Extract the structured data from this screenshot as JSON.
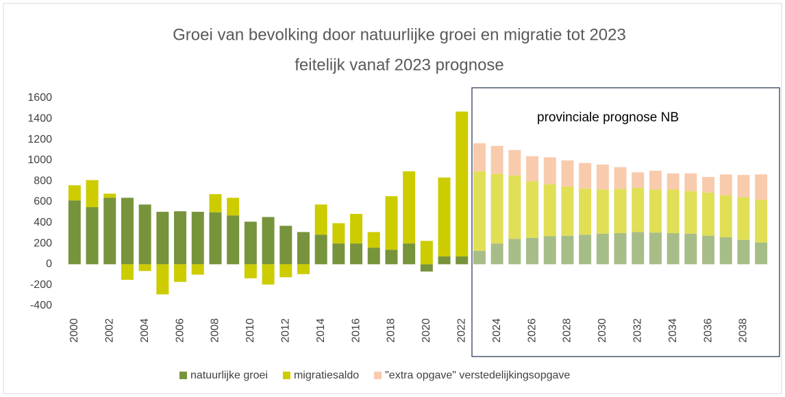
{
  "chart_data": {
    "type": "stacked_bar",
    "title": "Groei van bevolking door natuurlijke groei en migratie tot 2023",
    "subtitle": "feitelijk vanaf 2023 prognose",
    "annotation": "provinciale prognose NB",
    "categories": [
      "2000",
      null,
      "2002",
      null,
      "2004",
      null,
      "2006",
      null,
      "2008",
      null,
      "2010",
      null,
      "2012",
      null,
      "2014",
      null,
      "2016",
      null,
      "2018",
      null,
      "2020",
      null,
      "2022",
      null,
      "2024",
      null,
      "2026",
      null,
      "2028",
      null,
      "2030",
      null,
      "2032",
      null,
      "2034",
      null,
      "2036",
      null,
      "2038",
      null
    ],
    "series": [
      {
        "name": "natuurlijke groei",
        "color": "#77933c",
        "colors": [
          "#77933c",
          "#77933c",
          "#77933c",
          "#77933c",
          "#77933c",
          "#77933c",
          "#77933c",
          "#77933c",
          "#77933c",
          "#77933c",
          "#77933c",
          "#77933c",
          "#77933c",
          "#77933c",
          "#77933c",
          "#77933c",
          "#77933c",
          "#77933c",
          "#77933c",
          "#77933c",
          "#77933c",
          "#77933c",
          "#77933c",
          "#a7bd88",
          "#a7bd88",
          "#a7bd88",
          "#a7bd88",
          "#a7bd88",
          "#a7bd88",
          "#a7bd88",
          "#a7bd88",
          "#a7bd88",
          "#a7bd88",
          "#a7bd88",
          "#a7bd88",
          "#a7bd88",
          "#a7bd88",
          "#a7bd88",
          "#a7bd88",
          "#a7bd88"
        ],
        "values": [
          615,
          550,
          640,
          640,
          575,
          505,
          510,
          505,
          500,
          470,
          410,
          455,
          370,
          310,
          285,
          200,
          200,
          160,
          140,
          200,
          -70,
          75,
          75,
          130,
          200,
          245,
          255,
          270,
          275,
          285,
          295,
          300,
          310,
          305,
          300,
          295,
          275,
          260,
          235,
          210
        ]
      },
      {
        "name": "migratiesaldo",
        "color": "#cccc00",
        "colors": [
          "#cccc00",
          "#cccc00",
          "#cccc00",
          "#cccc00",
          "#cccc00",
          "#cccc00",
          "#cccc00",
          "#cccc00",
          "#cccc00",
          "#cccc00",
          "#cccc00",
          "#cccc00",
          "#cccc00",
          "#cccc00",
          "#cccc00",
          "#cccc00",
          "#cccc00",
          "#cccc00",
          "#cccc00",
          "#cccc00",
          "#cccc00",
          "#cccc00",
          "#cccc00",
          "#e0df55",
          "#e0df55",
          "#e0df55",
          "#e0df55",
          "#e0df55",
          "#e0df55",
          "#e0df55",
          "#e0df55",
          "#e0df55",
          "#e0df55",
          "#e0df55",
          "#e0df55",
          "#e0df55",
          "#e0df55",
          "#e0df55",
          "#e0df55",
          "#e0df55"
        ],
        "values": [
          145,
          260,
          40,
          -150,
          -65,
          -290,
          -170,
          -100,
          175,
          170,
          -135,
          -195,
          -125,
          -95,
          290,
          195,
          285,
          150,
          515,
          695,
          225,
          760,
          1395,
          765,
          670,
          610,
          545,
          500,
          475,
          445,
          425,
          425,
          425,
          415,
          420,
          410,
          415,
          405,
          410,
          410
        ]
      },
      {
        "name": "\"extra opgave\" verstedelijkingsopgave",
        "color": "#f8cbad",
        "colors": [
          "#f8cbad",
          "#f8cbad",
          "#f8cbad",
          "#f8cbad",
          "#f8cbad",
          "#f8cbad",
          "#f8cbad",
          "#f8cbad",
          "#f8cbad",
          "#f8cbad",
          "#f8cbad",
          "#f8cbad",
          "#f8cbad",
          "#f8cbad",
          "#f8cbad",
          "#f8cbad",
          "#f8cbad",
          "#f8cbad",
          "#f8cbad",
          "#f8cbad",
          "#f8cbad",
          "#f8cbad",
          "#f8cbad",
          "#f8cbad",
          "#f8cbad",
          "#f8cbad",
          "#f8cbad",
          "#f8cbad",
          "#f8cbad",
          "#f8cbad",
          "#f8cbad",
          "#f8cbad",
          "#f8cbad",
          "#f8cbad",
          "#f8cbad",
          "#f8cbad",
          "#f8cbad",
          "#f8cbad",
          "#f8cbad",
          "#f8cbad"
        ],
        "values": [
          null,
          null,
          null,
          null,
          null,
          null,
          null,
          null,
          null,
          null,
          null,
          null,
          null,
          null,
          null,
          null,
          null,
          null,
          null,
          null,
          null,
          null,
          null,
          270,
          270,
          245,
          240,
          260,
          250,
          245,
          240,
          210,
          150,
          180,
          155,
          170,
          150,
          200,
          215,
          245
        ]
      }
    ],
    "ylim": [
      -400,
      1600
    ],
    "yticks": [
      -400,
      -200,
      0,
      200,
      400,
      600,
      800,
      1000,
      1200,
      1400,
      1600
    ],
    "grid": false,
    "legend": "bottom"
  }
}
